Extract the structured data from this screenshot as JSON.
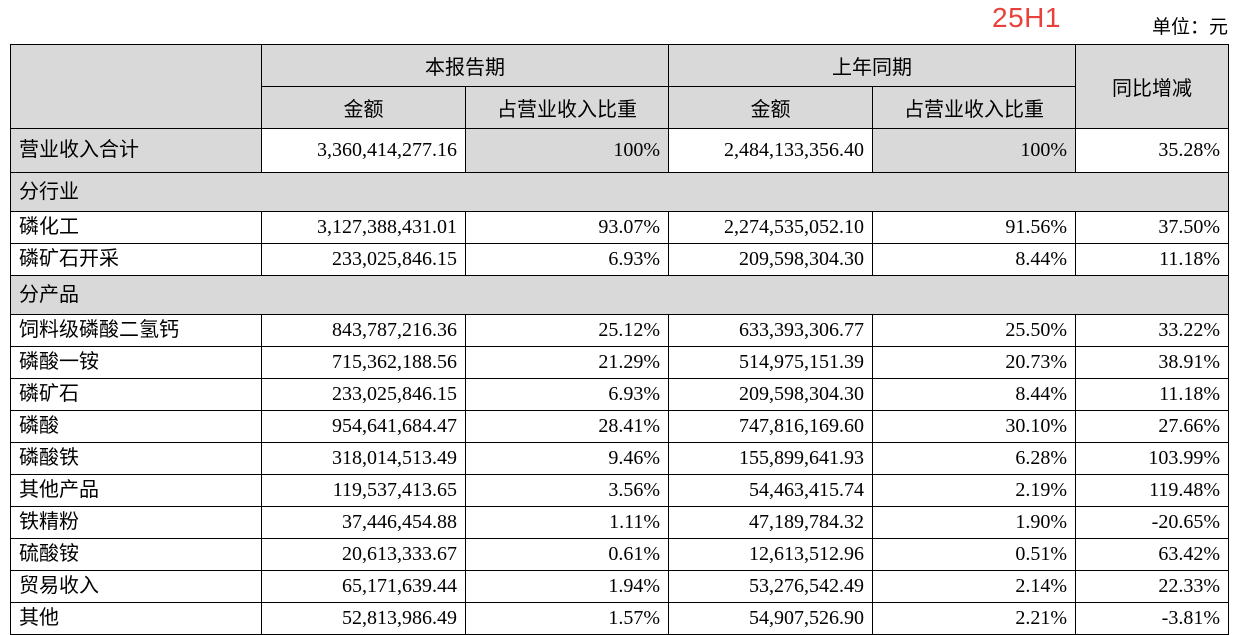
{
  "tag": "25H1",
  "unit": "单位：元",
  "header": {
    "current_period": "本报告期",
    "prior_period": "上年同期",
    "yoy": "同比增减",
    "amount": "金额",
    "share": "占营业收入比重"
  },
  "total": {
    "name": "营业收入合计",
    "cur": "3,360,414,277.16",
    "cur_pct": "100%",
    "prev": "2,484,133,356.40",
    "prev_pct": "100%",
    "yoy": "35.28%"
  },
  "by_industry": {
    "title": "分行业",
    "rows": [
      {
        "name": "磷化工",
        "cur": "3,127,388,431.01",
        "cur_pct": "93.07%",
        "prev": "2,274,535,052.10",
        "prev_pct": "91.56%",
        "yoy": "37.50%"
      },
      {
        "name": "磷矿石开采",
        "cur": "233,025,846.15",
        "cur_pct": "6.93%",
        "prev": "209,598,304.30",
        "prev_pct": "8.44%",
        "yoy": "11.18%"
      }
    ]
  },
  "by_product": {
    "title": "分产品",
    "rows": [
      {
        "name": "饲料级磷酸二氢钙",
        "cur": "843,787,216.36",
        "cur_pct": "25.12%",
        "prev": "633,393,306.77",
        "prev_pct": "25.50%",
        "yoy": "33.22%"
      },
      {
        "name": "磷酸一铵",
        "cur": "715,362,188.56",
        "cur_pct": "21.29%",
        "prev": "514,975,151.39",
        "prev_pct": "20.73%",
        "yoy": "38.91%"
      },
      {
        "name": "磷矿石",
        "cur": "233,025,846.15",
        "cur_pct": "6.93%",
        "prev": "209,598,304.30",
        "prev_pct": "8.44%",
        "yoy": "11.18%"
      },
      {
        "name": "磷酸",
        "cur": "954,641,684.47",
        "cur_pct": "28.41%",
        "prev": "747,816,169.60",
        "prev_pct": "30.10%",
        "yoy": "27.66%"
      },
      {
        "name": "磷酸铁",
        "cur": "318,014,513.49",
        "cur_pct": "9.46%",
        "prev": "155,899,641.93",
        "prev_pct": "6.28%",
        "yoy": "103.99%"
      },
      {
        "name": "其他产品",
        "cur": "119,537,413.65",
        "cur_pct": "3.56%",
        "prev": "54,463,415.74",
        "prev_pct": "2.19%",
        "yoy": "119.48%"
      },
      {
        "name": "铁精粉",
        "cur": "37,446,454.88",
        "cur_pct": "1.11%",
        "prev": "47,189,784.32",
        "prev_pct": "1.90%",
        "yoy": "-20.65%"
      },
      {
        "name": "硫酸铵",
        "cur": "20,613,333.67",
        "cur_pct": "0.61%",
        "prev": "12,613,512.96",
        "prev_pct": "0.51%",
        "yoy": "63.42%"
      },
      {
        "name": "贸易收入",
        "cur": "65,171,639.44",
        "cur_pct": "1.94%",
        "prev": "53,276,542.49",
        "prev_pct": "2.14%",
        "yoy": "22.33%"
      },
      {
        "name": "其他",
        "cur": "52,813,986.49",
        "cur_pct": "1.57%",
        "prev": "54,907,526.90",
        "prev_pct": "2.21%",
        "yoy": "-3.81%"
      }
    ]
  }
}
